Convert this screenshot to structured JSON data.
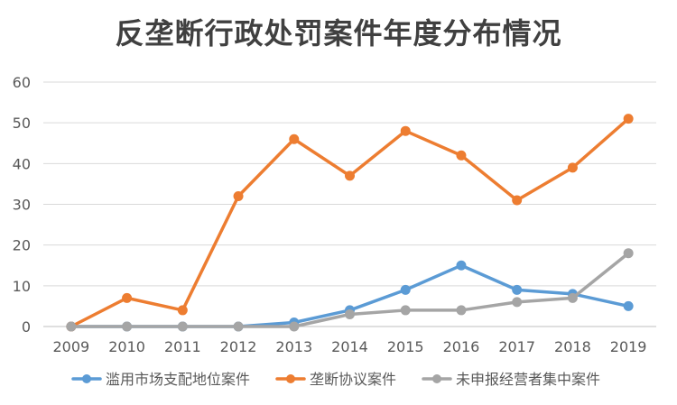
{
  "chart_data": {
    "type": "line",
    "title": "反垄断行政处罚案件年度分布情况",
    "xlabel": "",
    "ylabel": "",
    "x": [
      "2009",
      "2010",
      "2011",
      "2012",
      "2013",
      "2014",
      "2015",
      "2016",
      "2017",
      "2018",
      "2019"
    ],
    "ylim": [
      0,
      60
    ],
    "yticks": [
      0,
      10,
      20,
      30,
      40,
      50,
      60
    ],
    "grid": true,
    "legend_position": "bottom",
    "series": [
      {
        "name": "滥用市场支配地位案件",
        "color": "#5B9BD5",
        "values": [
          0,
          0,
          0,
          0,
          1,
          4,
          9,
          15,
          9,
          8,
          5
        ]
      },
      {
        "name": "垄断协议案件",
        "color": "#ED7D31",
        "values": [
          0,
          7,
          4,
          32,
          46,
          37,
          48,
          42,
          31,
          39,
          51
        ]
      },
      {
        "name": "未申报经营者集中案件",
        "color": "#A5A5A5",
        "values": [
          0,
          0,
          0,
          0,
          0,
          3,
          4,
          4,
          6,
          7,
          18
        ]
      }
    ]
  }
}
